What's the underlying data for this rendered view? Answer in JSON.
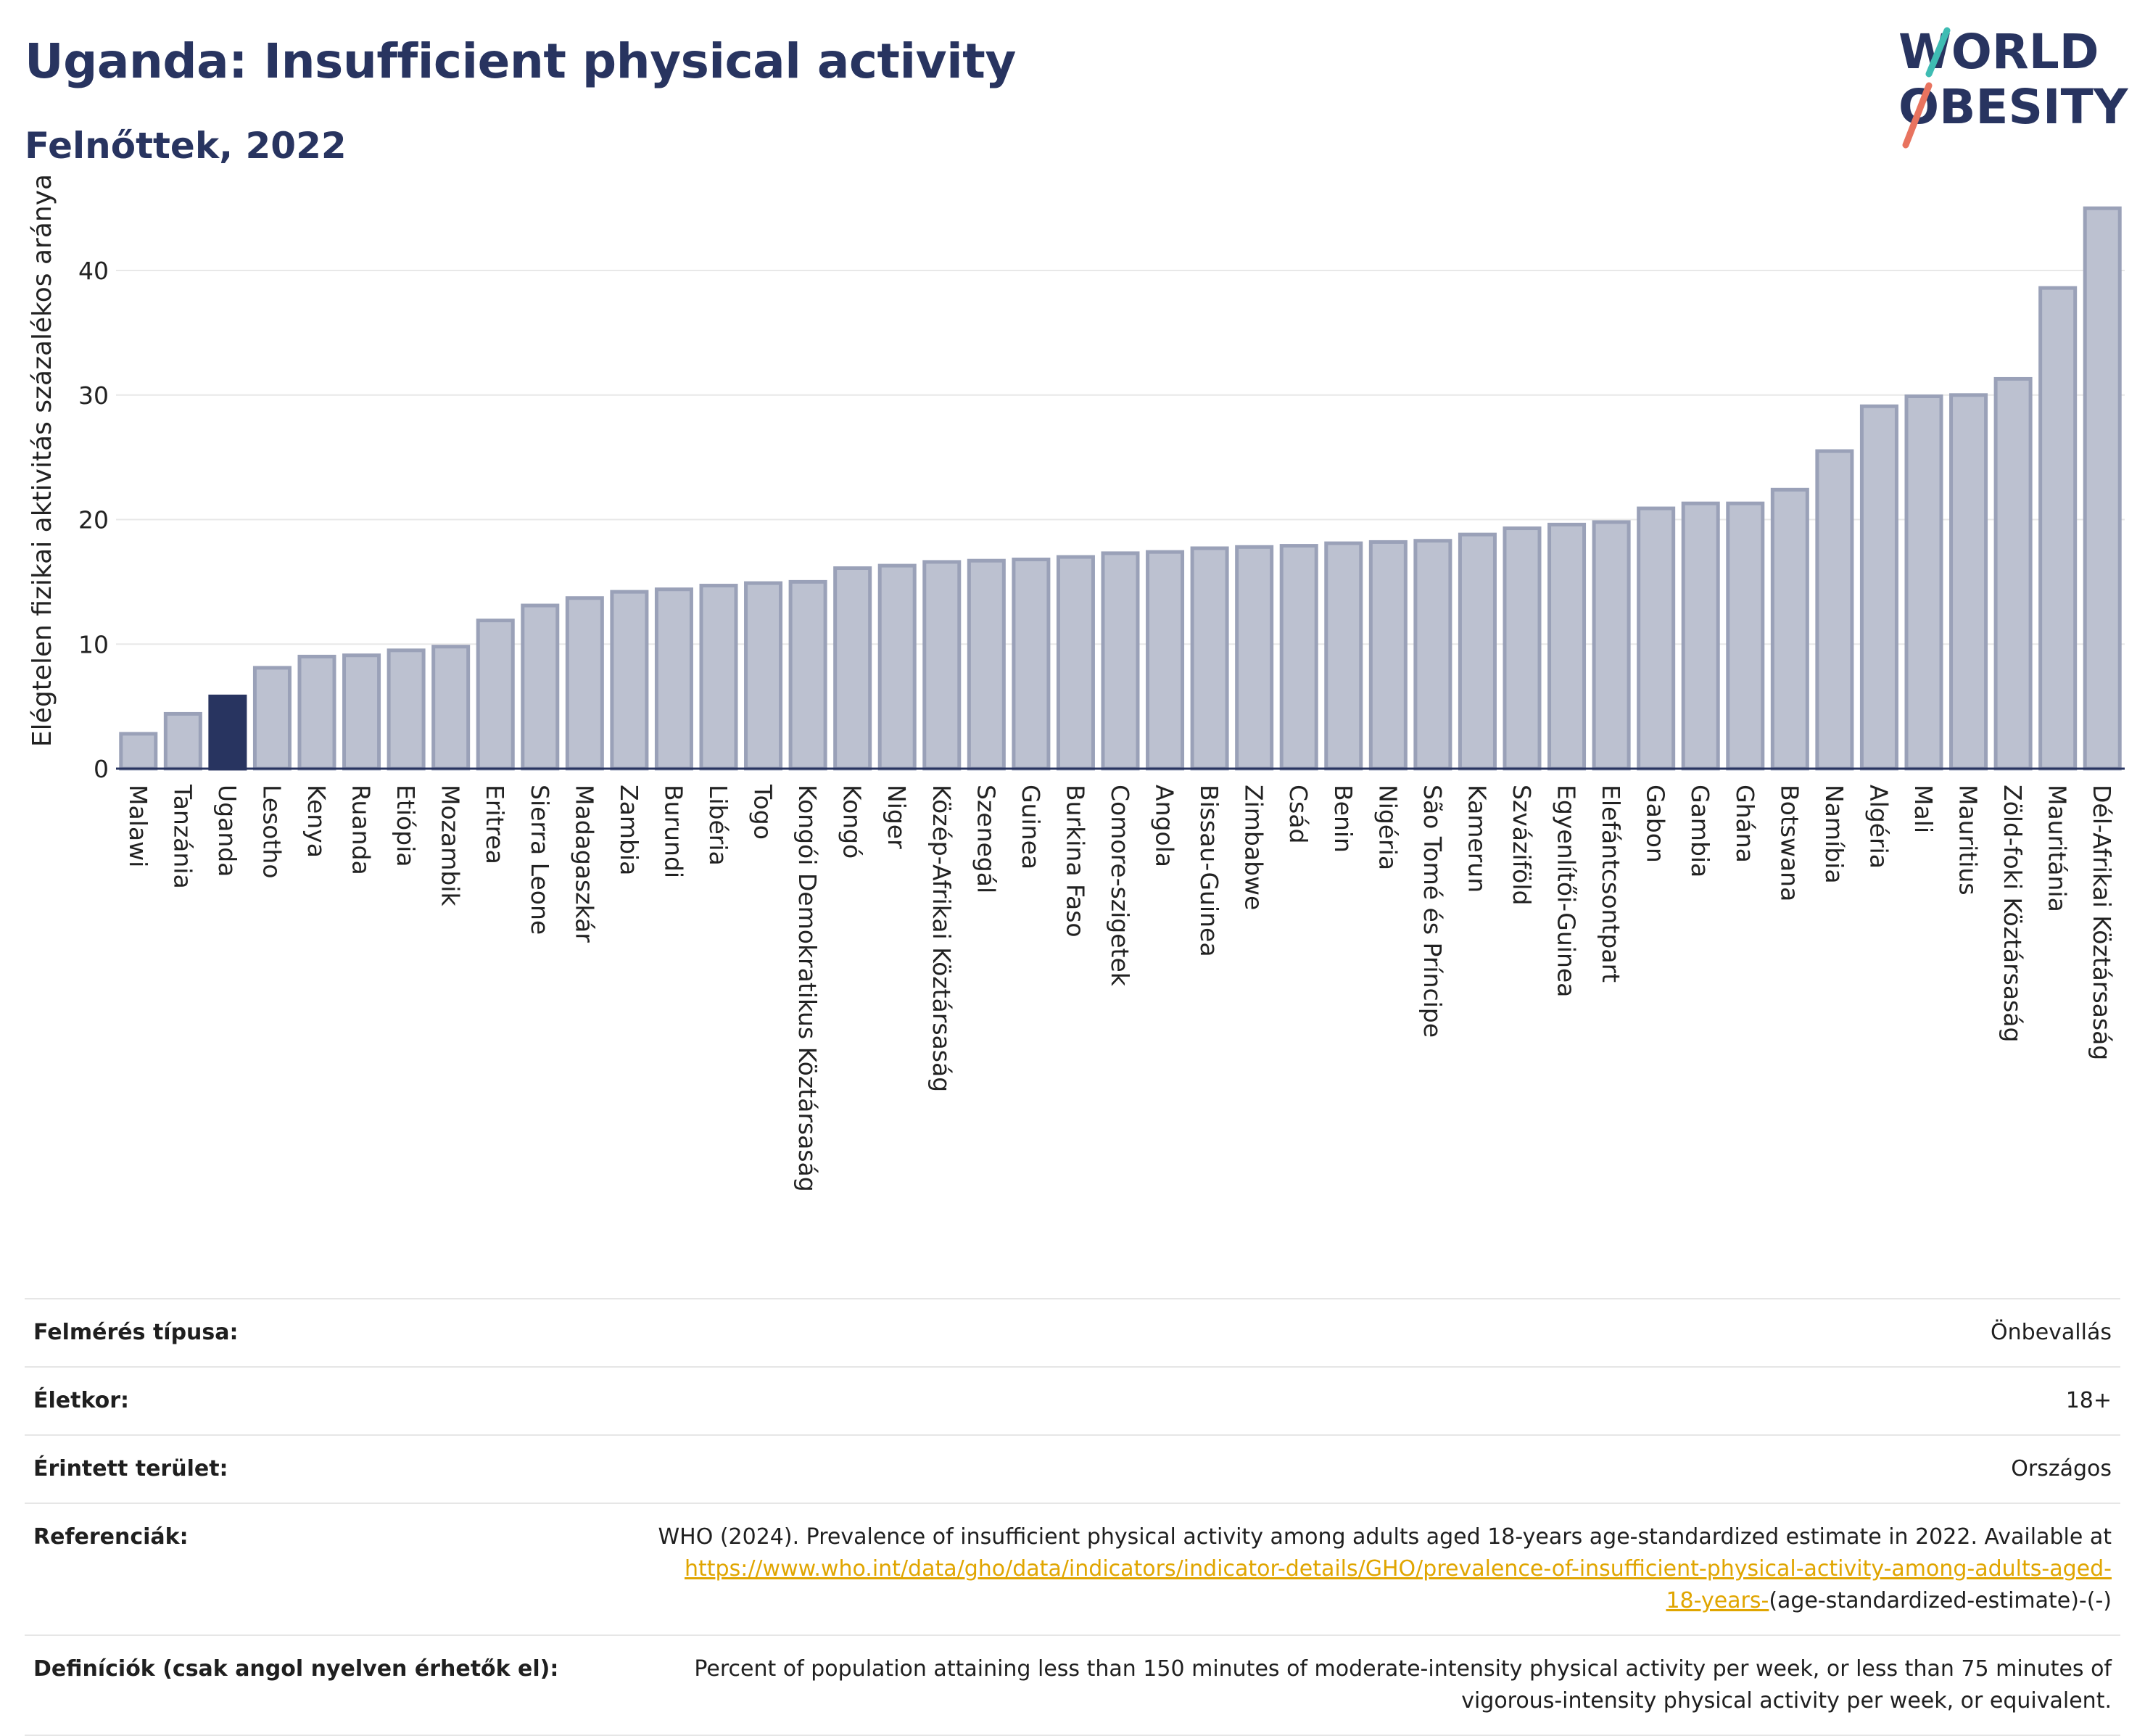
{
  "header": {
    "title": "Uganda: Insufficient physical activity",
    "subtitle": "Felnőttek, 2022"
  },
  "logo": {
    "line1": "WORLD",
    "line2": "OBESITY"
  },
  "chart_data": {
    "type": "bar",
    "ylabel": "Elégtelen fizikai aktivitás százalékos aránya",
    "ylim": [
      0,
      46
    ],
    "yticks": [
      0,
      10,
      20,
      30,
      40
    ],
    "grid": true,
    "highlight": "Uganda",
    "categories": [
      "Malawi",
      "Tanzánia",
      "Uganda",
      "Lesotho",
      "Kenya",
      "Ruanda",
      "Etiópia",
      "Mozambik",
      "Eritrea",
      "Sierra Leone",
      "Madagaszkár",
      "Zambia",
      "Burundi",
      "Libéria",
      "Togo",
      "Kongói Demokratikus Köztársaság",
      "Kongó",
      "Niger",
      "Közép-Afrikai Köztársaság",
      "Szenegál",
      "Guinea",
      "Burkina Faso",
      "Comore-szigetek",
      "Angola",
      "Bissau-Guinea",
      "Zimbabwe",
      "Csád",
      "Benin",
      "Nigéria",
      "São Tomé és Príncipe",
      "Kamerun",
      "Szváziföld",
      "Egyenlítői-Guinea",
      "Elefántcsontpart",
      "Gabon",
      "Gambia",
      "Ghána",
      "Botswana",
      "Namíbia",
      "Algéria",
      "Mali",
      "Mauritius",
      "Zöld-foki Köztársaság",
      "Mauritánia",
      "Dél-Afrikai Köztársaság"
    ],
    "values": [
      2.8,
      4.4,
      5.8,
      8.1,
      9.0,
      9.1,
      9.5,
      9.8,
      11.9,
      13.1,
      13.7,
      14.2,
      14.4,
      14.7,
      14.9,
      15.0,
      16.1,
      16.3,
      16.6,
      16.7,
      16.8,
      17.0,
      17.3,
      17.4,
      17.7,
      17.8,
      17.9,
      18.1,
      18.2,
      18.3,
      18.8,
      19.3,
      19.6,
      19.8,
      20.9,
      21.3,
      21.3,
      22.4,
      25.5,
      29.1,
      29.9,
      30.0,
      31.3,
      38.6,
      45.0
    ],
    "colors": {
      "bar": "#bcc1d0",
      "bar_edge": "#9aa1b8",
      "highlight": "#283460",
      "grid": "#e8e8e8",
      "axis": "#283460"
    }
  },
  "info": {
    "survey_label": "Felmérés típusa:",
    "survey_value": "Önbevallás",
    "age_label": "Életkor:",
    "age_value": "18+",
    "area_label": "Érintett terület:",
    "area_value": "Országos",
    "ref_label": "Referenciák:",
    "ref_text": "WHO (2024). Prevalence of insufficient physical activity among adults aged 18-years age-standardized estimate in 2022. Available at",
    "ref_link_line1": "https://www.who.int/data/gho/data/indicators/indicator-details/GHO/prevalence-of-insufficient-physical-activity-among-adults-aged-",
    "ref_link_line2": "18-years-",
    "ref_tail": "(age-standardized-estimate)-(-)",
    "def_label": "Definíciók (csak angol nyelven érhetők el):",
    "def_text": "Percent of population attaining less than 150 minutes of moderate-intensity physical activity per week, or less than 75 minutes of vigorous-intensity physical activity per week, or equivalent."
  }
}
